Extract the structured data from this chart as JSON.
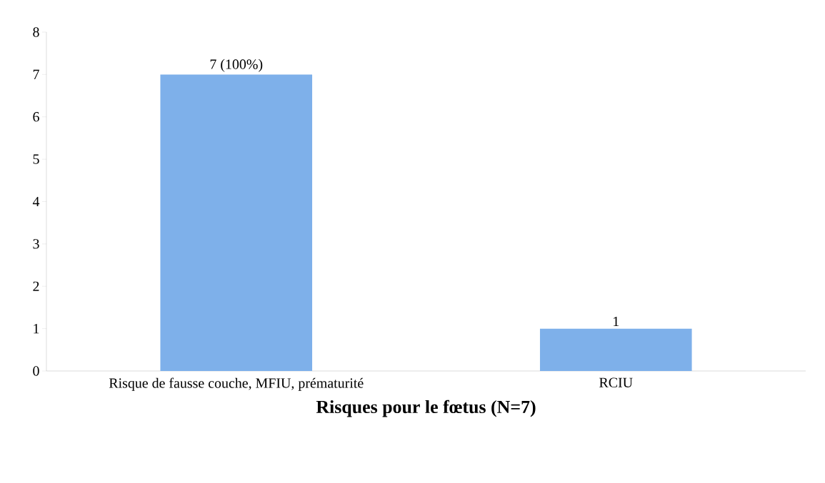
{
  "chart_data": {
    "type": "bar",
    "xlabel": "Risques pour le fœtus (N=7)",
    "categories": [
      "Risque de fausse couche, MFIU, prématurité",
      "RCIU"
    ],
    "values": [
      7,
      1
    ],
    "value_labels": [
      "7 (100%)",
      "1"
    ],
    "color": "#7eb0ea",
    "ylim": [
      0,
      8
    ],
    "yticks": [
      0,
      1,
      2,
      3,
      4,
      5,
      6,
      7,
      8
    ],
    "grid": false
  }
}
